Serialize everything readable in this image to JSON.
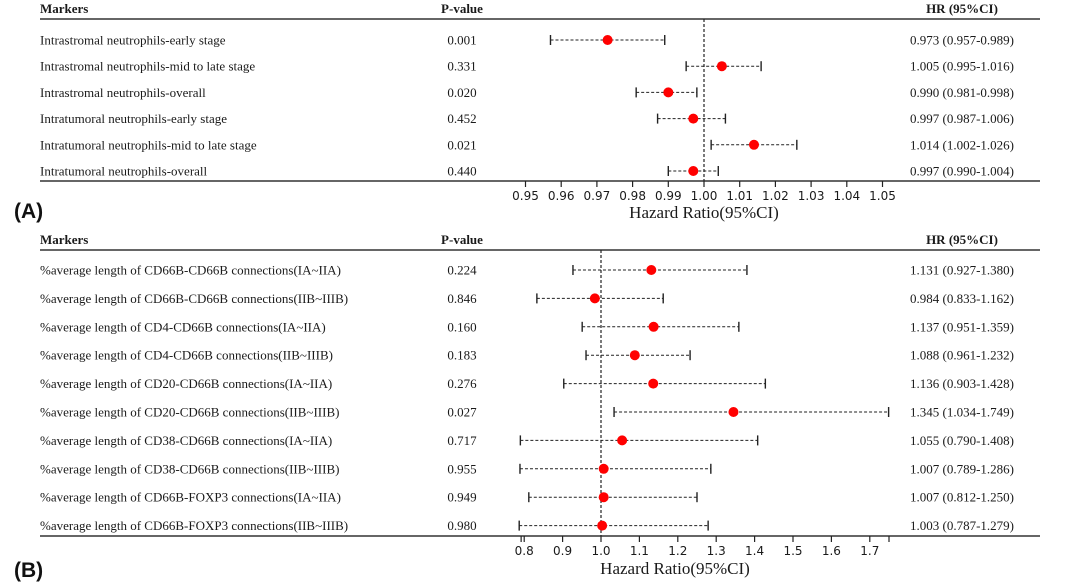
{
  "chart_data": [
    {
      "type": "forest",
      "panel_label": "(A)",
      "headers": {
        "markers": "Markers",
        "pvalue": "P-value",
        "hr": "HR (95%CI)"
      },
      "xlabel": "Hazard Ratio(95%CI)",
      "xlim": [
        0.95,
        1.05
      ],
      "reference_line": 1.0,
      "ticks": [
        "0.95",
        "0.96",
        "0.97",
        "0.98",
        "0.99",
        "1.00",
        "1.01",
        "1.02",
        "1.03",
        "1.04",
        "1.05"
      ],
      "rows": [
        {
          "marker": "Intrastromal neutrophils-early stage",
          "p": "0.001",
          "hr": 0.973,
          "lo": 0.957,
          "hi": 0.989,
          "hr_text": "0.973 (0.957-0.989)"
        },
        {
          "marker": "Intrastromal neutrophils-mid to late stage",
          "p": "0.331",
          "hr": 1.005,
          "lo": 0.995,
          "hi": 1.016,
          "hr_text": "1.005 (0.995-1.016)"
        },
        {
          "marker": "Intrastromal neutrophils-overall",
          "p": "0.020",
          "hr": 0.99,
          "lo": 0.981,
          "hi": 0.998,
          "hr_text": "0.990 (0.981-0.998)"
        },
        {
          "marker": "Intratumoral neutrophils-early stage",
          "p": "0.452",
          "hr": 0.997,
          "lo": 0.987,
          "hi": 1.006,
          "hr_text": "0.997 (0.987-1.006)"
        },
        {
          "marker": "Intratumoral neutrophils-mid to late stage",
          "p": "0.021",
          "hr": 1.014,
          "lo": 1.002,
          "hi": 1.026,
          "hr_text": "1.014 (1.002-1.026)"
        },
        {
          "marker": "Intratumoral neutrophils-overall",
          "p": "0.440",
          "hr": 0.997,
          "lo": 0.99,
          "hi": 1.004,
          "hr_text": "0.997 (0.990-1.004)"
        }
      ],
      "point_color": "#ff0000"
    },
    {
      "type": "forest",
      "panel_label": "(B)",
      "headers": {
        "markers": "Markers",
        "pvalue": "P-value",
        "hr": "HR (95%CI)"
      },
      "xlabel": "Hazard Ratio(95%CI)",
      "xlim": [
        0.8,
        1.75
      ],
      "reference_line": 1.0,
      "ticks": [
        "0.8",
        "0.9",
        "1.0",
        "1.1",
        "1.2",
        "1.3",
        "1.4",
        "1.5",
        "1.6",
        "1.7"
      ],
      "rows": [
        {
          "marker": "%average length of CD66B-CD66B connections(IA~IIA)",
          "p": "0.224",
          "hr": 1.131,
          "lo": 0.927,
          "hi": 1.38,
          "hr_text": "1.131 (0.927-1.380)"
        },
        {
          "marker": "%average length of CD66B-CD66B connections(IIB~IIIB)",
          "p": "0.846",
          "hr": 0.984,
          "lo": 0.833,
          "hi": 1.162,
          "hr_text": "0.984 (0.833-1.162)"
        },
        {
          "marker": "%average length of CD4-CD66B connections(IA~IIA)",
          "p": "0.160",
          "hr": 1.137,
          "lo": 0.951,
          "hi": 1.359,
          "hr_text": "1.137 (0.951-1.359)"
        },
        {
          "marker": "%average length of CD4-CD66B connections(IIB~IIIB)",
          "p": "0.183",
          "hr": 1.088,
          "lo": 0.961,
          "hi": 1.232,
          "hr_text": "1.088 (0.961-1.232)"
        },
        {
          "marker": "%average length of CD20-CD66B connections(IA~IIA)",
          "p": "0.276",
          "hr": 1.136,
          "lo": 0.903,
          "hi": 1.428,
          "hr_text": "1.136 (0.903-1.428)"
        },
        {
          "marker": "%average length of CD20-CD66B connections(IIB~IIIB)",
          "p": "0.027",
          "hr": 1.345,
          "lo": 1.034,
          "hi": 1.749,
          "hr_text": "1.345 (1.034-1.749)"
        },
        {
          "marker": "%average length of CD38-CD66B connections(IA~IIA)",
          "p": "0.717",
          "hr": 1.055,
          "lo": 0.79,
          "hi": 1.408,
          "hr_text": "1.055 (0.790-1.408)"
        },
        {
          "marker": "%average length of CD38-CD66B connections(IIB~IIIB)",
          "p": "0.955",
          "hr": 1.007,
          "lo": 0.789,
          "hi": 1.286,
          "hr_text": "1.007 (0.789-1.286)"
        },
        {
          "marker": "%average length of CD66B-FOXP3 connections(IA~IIA)",
          "p": "0.949",
          "hr": 1.007,
          "lo": 0.812,
          "hi": 1.25,
          "hr_text": "1.007 (0.812-1.250)"
        },
        {
          "marker": "%average length of CD66B-FOXP3 connections(IIB~IIIB)",
          "p": "0.980",
          "hr": 1.003,
          "lo": 0.787,
          "hi": 1.279,
          "hr_text": "1.003 (0.787-1.279)"
        }
      ],
      "point_color": "#ff0000"
    }
  ]
}
